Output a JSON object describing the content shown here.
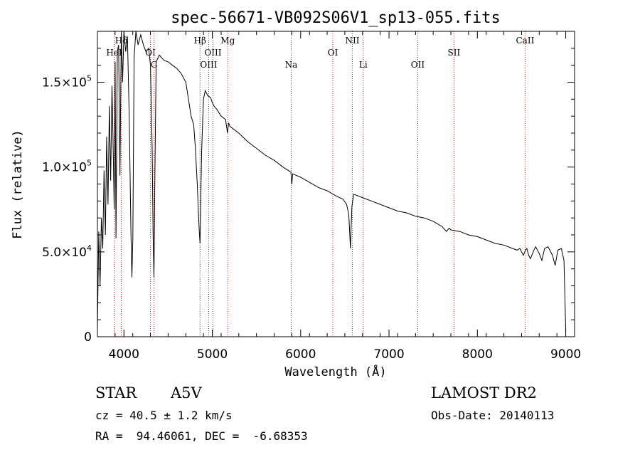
{
  "chart_data": {
    "type": "line",
    "title": "spec-56671-VB092S06V1_sp13-055.fits",
    "xlabel": "Wavelength (Å)",
    "ylabel": "Flux (relative)",
    "xlim": [
      3700,
      9100
    ],
    "ylim": [
      0,
      180000
    ],
    "grid": false,
    "x_ticks": [
      4000,
      5000,
      6000,
      7000,
      8000,
      9000
    ],
    "x_tick_labels": [
      "4000",
      "5000",
      "6000",
      "7000",
      "8000",
      "9000"
    ],
    "y_ticks": [
      0,
      50000,
      100000,
      150000
    ],
    "y_tick_labels": [
      {
        "mant": "0",
        "exp": ""
      },
      {
        "mant": "5.0×10",
        "exp": "4"
      },
      {
        "mant": "1.0×10",
        "exp": "5"
      },
      {
        "mant": "1.5×10",
        "exp": "5"
      }
    ],
    "series": [
      {
        "x": [
          3700,
          3715,
          3730,
          3745,
          3760,
          3775,
          3790,
          3805,
          3820,
          3835,
          3850,
          3865,
          3880,
          3890,
          3900,
          3910,
          3925,
          3940,
          3955,
          3970,
          3985,
          4000,
          4020,
          4040,
          4060,
          4080,
          4090,
          4101,
          4115,
          4135,
          4160,
          4190,
          4220,
          4250,
          4280,
          4300,
          4320,
          4330,
          4340,
          4350,
          4365,
          4400,
          4450,
          4500,
          4550,
          4600,
          4650,
          4700,
          4730,
          4760,
          4790,
          4810,
          4830,
          4845,
          4855,
          4861,
          4868,
          4880,
          4900,
          4920,
          4950,
          4980,
          5000,
          5020,
          5050,
          5100,
          5150,
          5172,
          5185,
          5200,
          5300,
          5400,
          5500,
          5600,
          5700,
          5800,
          5890,
          5900,
          5910,
          6000,
          6100,
          6200,
          6300,
          6400,
          6480,
          6520,
          6545,
          6556,
          6563,
          6570,
          6580,
          6600,
          6700,
          6800,
          6900,
          7000,
          7100,
          7200,
          7300,
          7400,
          7500,
          7600,
          7650,
          7680,
          7700,
          7800,
          7900,
          8000,
          8100,
          8200,
          8300,
          8400,
          8450,
          8480,
          8500,
          8520,
          8545,
          8560,
          8580,
          8600,
          8640,
          8660,
          8700,
          8730,
          8760,
          8800,
          8850,
          8880,
          8910,
          8950,
          8980,
          9000
        ],
        "y": [
          5000,
          62000,
          30000,
          70000,
          52000,
          98000,
          60000,
          118000,
          78000,
          136000,
          92000,
          148000,
          105000,
          75000,
          162000,
          58000,
          168000,
          172000,
          95000,
          180000,
          150000,
          182000,
          168000,
          177000,
          130000,
          60000,
          35000,
          58000,
          165000,
          180000,
          172000,
          178000,
          172000,
          168000,
          170000,
          160000,
          110000,
          60000,
          35000,
          95000,
          162000,
          166000,
          163000,
          162000,
          160000,
          158000,
          155000,
          150000,
          140000,
          130000,
          125000,
          110000,
          90000,
          70000,
          60000,
          55000,
          75000,
          110000,
          140000,
          145000,
          142000,
          141000,
          138000,
          136000,
          134000,
          130000,
          128000,
          120000,
          126000,
          124000,
          120000,
          115000,
          111000,
          107000,
          104000,
          100000,
          97000,
          90000,
          96000,
          94000,
          91000,
          88000,
          86000,
          83000,
          81000,
          78000,
          72000,
          60000,
          52000,
          62000,
          77000,
          84000,
          82000,
          80000,
          78000,
          76000,
          74000,
          73000,
          71000,
          70000,
          68000,
          65000,
          62000,
          64000,
          63000,
          62000,
          60000,
          59000,
          57000,
          55000,
          54000,
          52000,
          51000,
          52000,
          50000,
          48000,
          51000,
          52000,
          48000,
          46000,
          51000,
          53000,
          49000,
          45000,
          52000,
          53000,
          48000,
          42000,
          51000,
          52000,
          45000,
          3000
        ]
      }
    ],
    "line_markers": [
      {
        "name": "HeI",
        "x": 3889,
        "row": 2
      },
      {
        "name": "Hδ",
        "x": 3970,
        "row": 1
      },
      {
        "name": "OI",
        "x": 4300,
        "row": 2
      },
      {
        "name": "G",
        "x": 4340,
        "row": 3
      },
      {
        "name": "Hβ",
        "x": 4861,
        "row": 1
      },
      {
        "name": "OIII",
        "x": 4959,
        "row": 3
      },
      {
        "name": "OIII",
        "x": 5007,
        "row": 2
      },
      {
        "name": "Mg",
        "x": 5175,
        "row": 1
      },
      {
        "name": "Na",
        "x": 5893,
        "row": 3
      },
      {
        "name": "OI",
        "x": 6364,
        "row": 2
      },
      {
        "name": "NII",
        "x": 6585,
        "row": 1
      },
      {
        "name": "Li",
        "x": 6708,
        "row": 3
      },
      {
        "name": "OII",
        "x": 7325,
        "row": 3
      },
      {
        "name": "SII",
        "x": 7735,
        "row": 2
      },
      {
        "name": "CaII",
        "x": 8540,
        "row": 1
      }
    ]
  },
  "info": {
    "object_type": "STAR",
    "object_class": "A5V",
    "cz": "cz = 40.5 ± 1.2 km/s",
    "radec": "RA =  94.46061, DEC =  -6.68353",
    "survey": "LAMOST DR2",
    "obs_date": "Obs-Date: 20140113"
  }
}
